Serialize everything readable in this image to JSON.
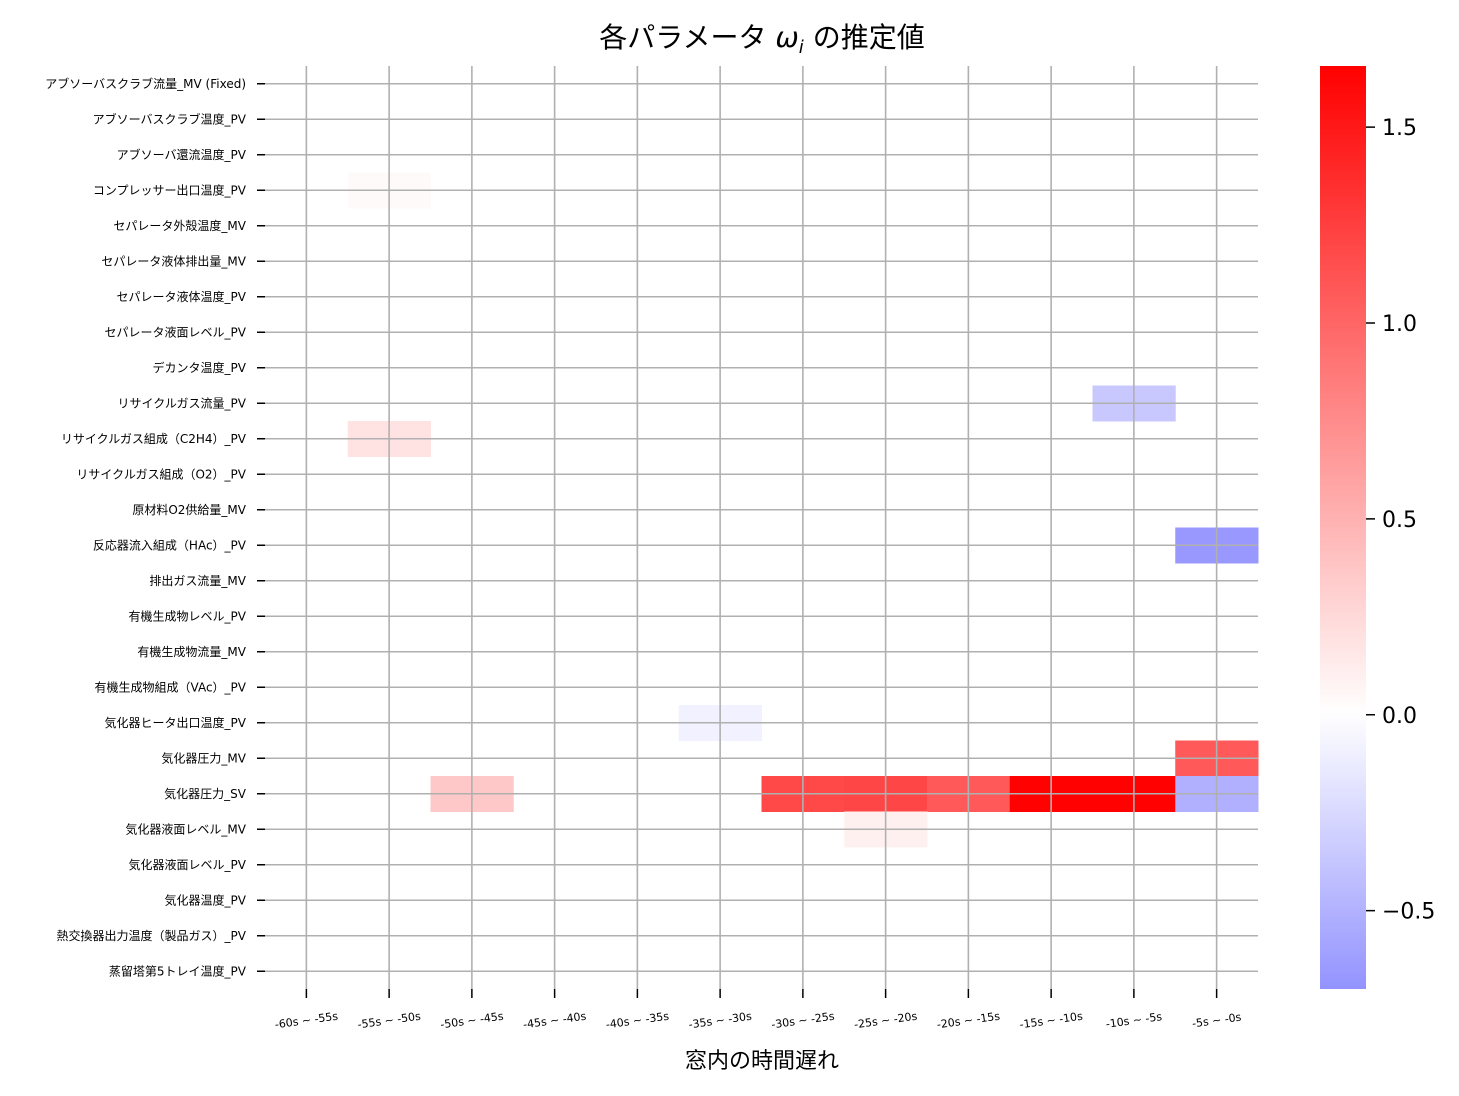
{
  "chart_data": {
    "type": "heatmap",
    "title_prefix": "各パラメータ ",
    "title_symbol": "ω",
    "title_subscript": "i",
    "title_suffix": " の推定値",
    "xlabel": "窓内の時間遅れ",
    "ylabel": "",
    "x_categories": [
      "-60s ~ -55s",
      "-55s ~ -50s",
      "-50s ~ -45s",
      "-45s ~ -40s",
      "-40s ~ -35s",
      "-35s ~ -30s",
      "-30s ~ -25s",
      "-25s ~ -20s",
      "-20s ~ -15s",
      "-15s ~ -10s",
      "-10s ~ -5s",
      "-5s ~ -0s"
    ],
    "y_categories": [
      "アブソーバスクラブ流量_MV (Fixed)",
      "アブソーバスクラブ温度_PV",
      "アブソーバ還流温度_PV",
      "コンプレッサー出口温度_PV",
      "セパレータ外殻温度_MV",
      "セパレータ液体排出量_MV",
      "セパレータ液体温度_PV",
      "セパレータ液面レベル_PV",
      "デカンタ温度_PV",
      "リサイクルガス流量_PV",
      "リサイクルガス組成（C2H4）_PV",
      "リサイクルガス組成（O2）_PV",
      "原材料O2供給量_MV",
      "反応器流入組成（HAc）_PV",
      "排出ガス流量_MV",
      "有機生成物レベル_PV",
      "有機生成物流量_MV",
      "有機生成物組成（VAc）_PV",
      "気化器ヒータ出口温度_PV",
      "気化器圧力_MV",
      "気化器圧力_SV",
      "気化器液面レベル_MV",
      "気化器液面レベル_PV",
      "気化器温度_PV",
      "熱交換器出力温度（製品ガス）_PV",
      "蒸留塔第5トレイ温度_PV"
    ],
    "values": [
      [
        0,
        0,
        0,
        0,
        0,
        0,
        0,
        0,
        0,
        0,
        0,
        0
      ],
      [
        0,
        0,
        0,
        0,
        0,
        0,
        0,
        0,
        0,
        0,
        0,
        0
      ],
      [
        0,
        0,
        0,
        0,
        0,
        0,
        0,
        0,
        0,
        0,
        0,
        0
      ],
      [
        0,
        0.03,
        0,
        0,
        0,
        0,
        0,
        0,
        0,
        0,
        0,
        0
      ],
      [
        0,
        0,
        0,
        0,
        0,
        0,
        0,
        0,
        0,
        0,
        0,
        0
      ],
      [
        0,
        0,
        0,
        0,
        0,
        0,
        0,
        0,
        0,
        0,
        0,
        0
      ],
      [
        0,
        0,
        0,
        0,
        0,
        0,
        0,
        0,
        0,
        0,
        0,
        0
      ],
      [
        0,
        0,
        0,
        0,
        0,
        0,
        0,
        0,
        0,
        0,
        0,
        0
      ],
      [
        0,
        0,
        0,
        0,
        0,
        0,
        0,
        0,
        0,
        0,
        0,
        0
      ],
      [
        0,
        0,
        0,
        0,
        0,
        0,
        0,
        0,
        0,
        0,
        -0.36,
        0
      ],
      [
        0,
        0.18,
        0,
        0,
        0,
        0,
        0,
        0,
        0,
        0,
        0,
        0
      ],
      [
        0,
        0,
        0,
        0,
        0,
        0,
        0,
        0,
        0,
        0,
        0,
        0
      ],
      [
        0,
        0,
        0,
        0,
        0,
        0,
        0,
        0,
        0,
        0,
        0,
        0
      ],
      [
        0,
        0,
        0,
        0,
        0,
        0,
        0,
        0,
        0,
        0,
        0,
        -0.67
      ],
      [
        0,
        0,
        0,
        0,
        0,
        0,
        0,
        0,
        0,
        0,
        0,
        0
      ],
      [
        0,
        0,
        0,
        0,
        0,
        0,
        0,
        0,
        0,
        0,
        0,
        0
      ],
      [
        0,
        0,
        0,
        0,
        0,
        0,
        0,
        0,
        0,
        0,
        0,
        0
      ],
      [
        0,
        0,
        0,
        0,
        0,
        0,
        0,
        0,
        0,
        0,
        0,
        0
      ],
      [
        0,
        0,
        0,
        0,
        0,
        -0.09,
        0,
        0,
        0,
        0,
        0,
        0
      ],
      [
        0,
        0,
        0,
        0,
        0,
        0,
        0,
        0,
        0,
        0,
        0,
        1.08
      ],
      [
        0,
        0,
        0.36,
        0,
        0,
        0,
        1.19,
        1.2,
        1.08,
        1.65,
        1.65,
        -0.51
      ],
      [
        0,
        0,
        0,
        0,
        0,
        0,
        0,
        0.1,
        0,
        0,
        0,
        0
      ],
      [
        0,
        0,
        0,
        0,
        0,
        0,
        0,
        0,
        0,
        0,
        0,
        0
      ],
      [
        0,
        0,
        0,
        0,
        0,
        0,
        0,
        0,
        0,
        0,
        0,
        0
      ],
      [
        0,
        0,
        0,
        0,
        0,
        0,
        0,
        0,
        0,
        0,
        0,
        0
      ],
      [
        0,
        0,
        0,
        0,
        0,
        0,
        0,
        0,
        0,
        0,
        0,
        0
      ]
    ],
    "colormap": "bwr",
    "color_center": 0,
    "vmin": -0.7,
    "vmax": 1.656,
    "colorbar_ticks": [
      1.5,
      1.0,
      0.5,
      0.0,
      -0.5
    ],
    "colorbar_tick_labels": [
      "1.5",
      "1.0",
      "0.5",
      "0.0",
      "−0.5"
    ],
    "grid": true,
    "grid_color": "#b0b0b0"
  }
}
